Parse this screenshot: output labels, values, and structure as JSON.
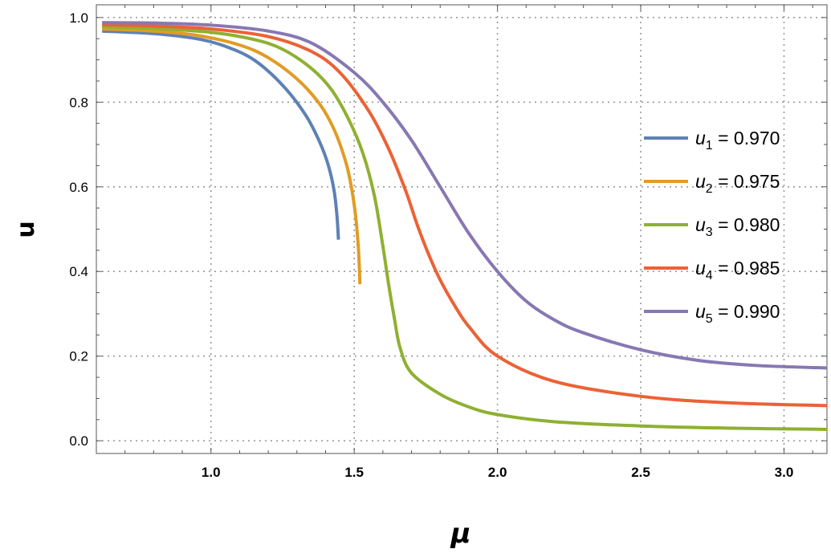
{
  "chart_data": {
    "type": "line",
    "title": "",
    "xlabel": "μ",
    "ylabel": "u",
    "xlim": [
      0.6,
      3.15
    ],
    "ylim": [
      -0.03,
      1.03
    ],
    "grid": true,
    "x_ticks": [
      1.0,
      1.5,
      2.0,
      2.5,
      3.0
    ],
    "x_tick_labels": [
      "1.0",
      "1.5",
      "2.0",
      "2.5",
      "3.0"
    ],
    "y_ticks": [
      0.0,
      0.2,
      0.4,
      0.6,
      0.8,
      1.0
    ],
    "y_tick_labels": [
      "0.0",
      "0.2",
      "0.4",
      "0.6",
      "0.8",
      "1.0"
    ],
    "legend_position": "right",
    "series": [
      {
        "name": "u1 = 0.970",
        "label_var": "u",
        "label_sub": "1",
        "label_value": " = 0.970",
        "color": "#5E81B5",
        "x": [
          0.62,
          0.8,
          0.95,
          1.05,
          1.15,
          1.25,
          1.33,
          1.38,
          1.41,
          1.43,
          1.44,
          1.445
        ],
        "y": [
          0.968,
          0.962,
          0.95,
          0.932,
          0.9,
          0.84,
          0.77,
          0.705,
          0.65,
          0.59,
          0.53,
          0.475
        ]
      },
      {
        "name": "u2 = 0.975",
        "label_var": "u",
        "label_sub": "2",
        "label_value": " = 0.975",
        "color": "#E19C24",
        "x": [
          0.62,
          0.8,
          0.95,
          1.1,
          1.2,
          1.3,
          1.38,
          1.43,
          1.47,
          1.49,
          1.505,
          1.515,
          1.52
        ],
        "y": [
          0.973,
          0.968,
          0.958,
          0.935,
          0.905,
          0.855,
          0.795,
          0.735,
          0.66,
          0.6,
          0.53,
          0.45,
          0.37
        ]
      },
      {
        "name": "u3 = 0.980",
        "label_var": "u",
        "label_sub": "3",
        "label_value": " = 0.980",
        "color": "#8FB032",
        "x": [
          0.62,
          0.8,
          1.0,
          1.15,
          1.25,
          1.35,
          1.42,
          1.48,
          1.53,
          1.57,
          1.6,
          1.62,
          1.64,
          1.66,
          1.7,
          1.8,
          1.9,
          2.0,
          2.2,
          2.5,
          2.8,
          3.15
        ],
        "y": [
          0.978,
          0.974,
          0.965,
          0.948,
          0.925,
          0.88,
          0.83,
          0.76,
          0.68,
          0.58,
          0.46,
          0.37,
          0.29,
          0.22,
          0.16,
          0.11,
          0.08,
          0.062,
          0.045,
          0.035,
          0.03,
          0.027
        ]
      },
      {
        "name": "u4 = 0.985",
        "label_var": "u",
        "label_sub": "4",
        "label_value": " = 0.985",
        "color": "#EB6235",
        "x": [
          0.62,
          0.8,
          1.0,
          1.2,
          1.35,
          1.45,
          1.55,
          1.62,
          1.68,
          1.72,
          1.76,
          1.8,
          1.85,
          1.9,
          2.0,
          2.2,
          2.5,
          2.8,
          3.15
        ],
        "y": [
          0.983,
          0.98,
          0.973,
          0.955,
          0.92,
          0.87,
          0.78,
          0.69,
          0.59,
          0.51,
          0.44,
          0.38,
          0.32,
          0.27,
          0.2,
          0.14,
          0.105,
          0.09,
          0.083
        ]
      },
      {
        "name": "u5 = 0.990",
        "label_var": "u",
        "label_sub": "5",
        "label_value": " = 0.990",
        "color": "#8778B3",
        "x": [
          0.62,
          0.8,
          1.0,
          1.2,
          1.35,
          1.5,
          1.6,
          1.7,
          1.8,
          1.9,
          2.0,
          2.1,
          2.2,
          2.3,
          2.5,
          2.7,
          2.9,
          3.15
        ],
        "y": [
          0.988,
          0.987,
          0.982,
          0.968,
          0.94,
          0.87,
          0.8,
          0.71,
          0.6,
          0.49,
          0.4,
          0.33,
          0.285,
          0.255,
          0.215,
          0.19,
          0.178,
          0.172
        ]
      }
    ]
  }
}
